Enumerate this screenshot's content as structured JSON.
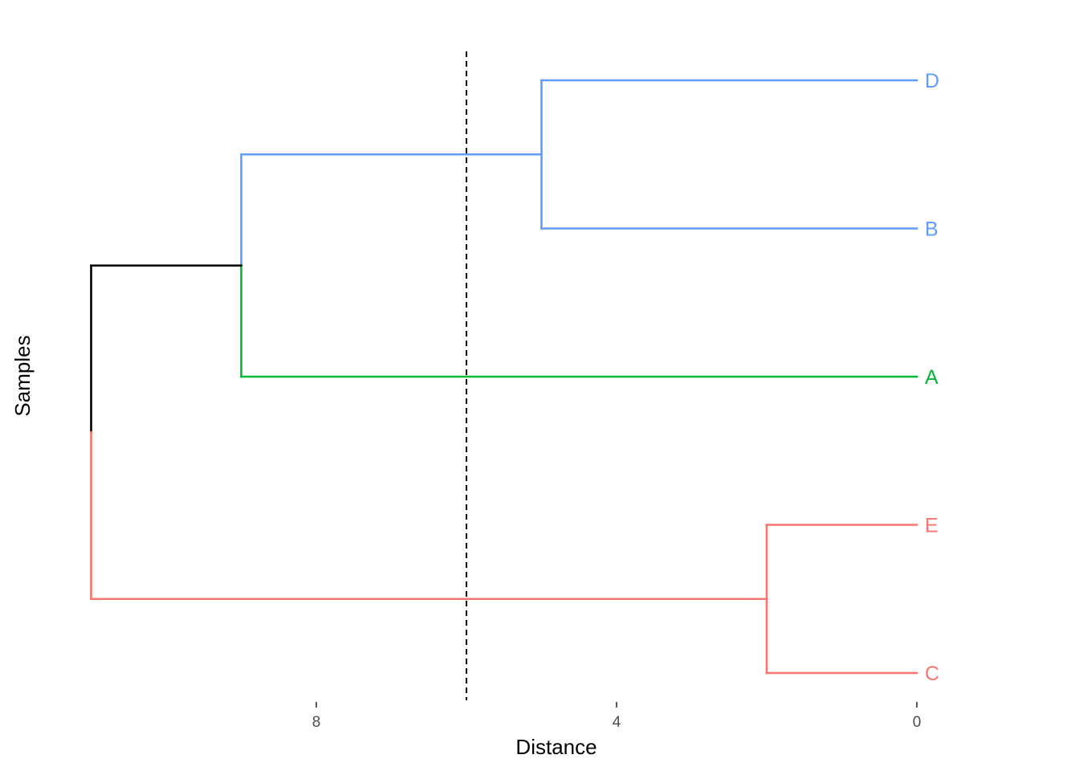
{
  "chart_data": {
    "type": "dendrogram",
    "orientation": "horizontal",
    "xlabel": "Distance",
    "ylabel": "Samples",
    "x_ticks": [
      8,
      4,
      0
    ],
    "x_range": [
      11,
      0
    ],
    "cut_height": 6,
    "leaf_order": [
      "D",
      "B",
      "A",
      "E",
      "C"
    ],
    "colors": {
      "blue": "#619CFF",
      "green": "#00BA38",
      "red": "#F8766D",
      "root": "#000000",
      "cut_line": "#000000"
    },
    "leaves": [
      {
        "label": "D",
        "cluster": "blue"
      },
      {
        "label": "B",
        "cluster": "blue"
      },
      {
        "label": "A",
        "cluster": "green"
      },
      {
        "label": "E",
        "cluster": "red"
      },
      {
        "label": "C",
        "cluster": "red"
      }
    ],
    "merges": [
      {
        "members": [
          "D",
          "B"
        ],
        "height": 5
      },
      {
        "members": [
          "E",
          "C"
        ],
        "height": 2
      },
      {
        "members": [
          "D",
          "B",
          "A"
        ],
        "height": 9
      },
      {
        "members": [
          "D",
          "B",
          "A",
          "E",
          "C"
        ],
        "height": 11
      }
    ]
  }
}
